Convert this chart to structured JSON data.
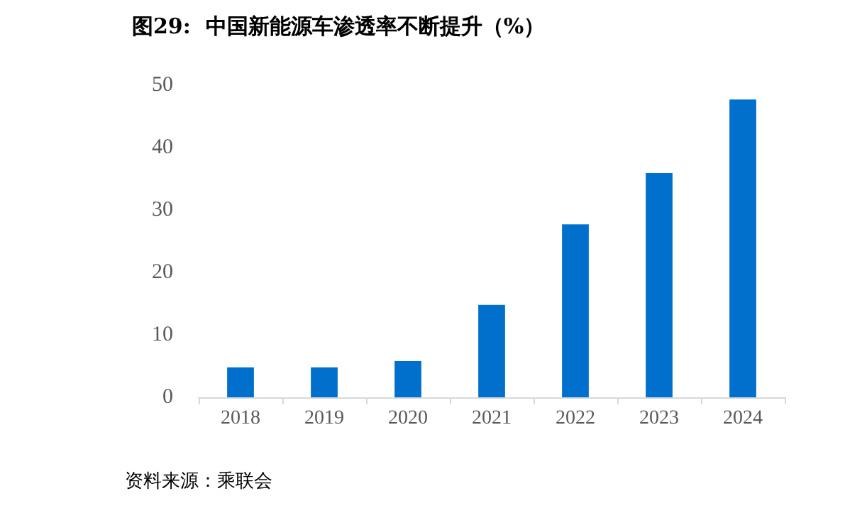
{
  "chart_data": {
    "type": "bar",
    "title": "图29:  中国新能源车渗透率不断提升（%）",
    "categories": [
      "2018",
      "2019",
      "2020",
      "2021",
      "2022",
      "2023",
      "2024"
    ],
    "values": [
      4.8,
      4.8,
      5.8,
      14.8,
      27.7,
      35.9,
      47.7
    ],
    "color": "#0070cc",
    "ylim": [
      0,
      50
    ],
    "yticks": [
      0,
      10,
      20,
      30,
      40,
      50
    ],
    "grid": false,
    "annotations": [
      "资料来源：乘联会"
    ]
  }
}
